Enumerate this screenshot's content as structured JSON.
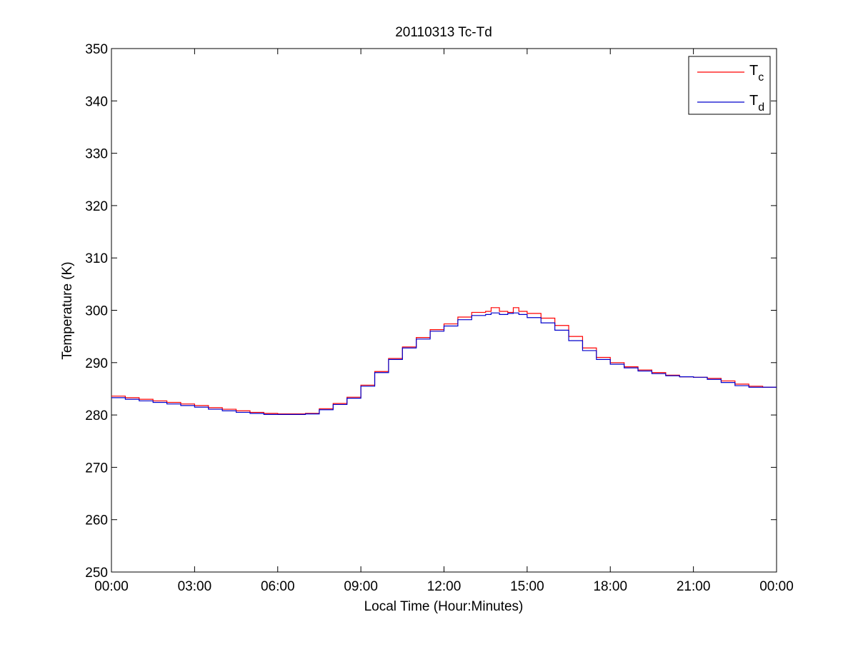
{
  "chart_data": {
    "type": "line",
    "title": "20110313 Tc-Td",
    "xlabel": "Local Time (Hour:Minutes)",
    "ylabel": "Temperature (K)",
    "xlim": [
      0,
      24
    ],
    "ylim": [
      250,
      350
    ],
    "x_ticks": [
      {
        "value": 0,
        "label": "00:00"
      },
      {
        "value": 3,
        "label": "03:00"
      },
      {
        "value": 6,
        "label": "06:00"
      },
      {
        "value": 9,
        "label": "09:00"
      },
      {
        "value": 12,
        "label": "12:00"
      },
      {
        "value": 15,
        "label": "15:00"
      },
      {
        "value": 18,
        "label": "18:00"
      },
      {
        "value": 21,
        "label": "21:00"
      },
      {
        "value": 24,
        "label": "00:00"
      }
    ],
    "y_ticks": [
      250,
      260,
      270,
      280,
      290,
      300,
      310,
      320,
      330,
      340,
      350
    ],
    "grid": false,
    "legend_position": "top-right",
    "series": [
      {
        "name": "Tc",
        "name_main": "T",
        "name_sub": "c",
        "color": "#ff0000",
        "x": [
          0,
          0.5,
          1,
          1.5,
          2,
          2.5,
          3,
          3.5,
          4,
          4.5,
          5,
          5.5,
          6,
          6.5,
          7,
          7.5,
          8,
          8.5,
          9,
          9.5,
          10,
          10.5,
          11,
          11.5,
          12,
          12.5,
          13,
          13.5,
          13.7,
          14,
          14.3,
          14.5,
          14.7,
          15,
          15.5,
          16,
          16.5,
          17,
          17.5,
          18,
          18.5,
          19,
          19.5,
          20,
          20.5,
          21,
          21.5,
          22,
          22.5,
          23,
          23.5,
          24
        ],
        "y": [
          283.6,
          283.3,
          283.0,
          282.7,
          282.4,
          282.1,
          281.8,
          281.4,
          281.1,
          280.8,
          280.5,
          280.3,
          280.2,
          280.2,
          280.3,
          281.2,
          282.2,
          283.4,
          285.7,
          288.3,
          290.8,
          293.0,
          294.8,
          296.3,
          297.4,
          298.7,
          299.6,
          299.8,
          300.5,
          299.8,
          299.6,
          300.5,
          299.8,
          299.4,
          298.5,
          297.1,
          295.0,
          292.8,
          291.0,
          290.0,
          289.2,
          288.6,
          288.1,
          287.6,
          287.3,
          287.2,
          287.0,
          286.5,
          285.9,
          285.5,
          285.3,
          285.3
        ]
      },
      {
        "name": "Td",
        "name_main": "T",
        "name_sub": "d",
        "color": "#0000cc",
        "x": [
          0,
          0.5,
          1,
          1.5,
          2,
          2.5,
          3,
          3.5,
          4,
          4.5,
          5,
          5.5,
          6,
          6.5,
          7,
          7.5,
          8,
          8.5,
          9,
          9.5,
          10,
          10.5,
          11,
          11.5,
          12,
          12.5,
          13,
          13.5,
          13.7,
          14,
          14.3,
          14.5,
          14.7,
          15,
          15.5,
          16,
          16.5,
          17,
          17.5,
          18,
          18.5,
          19,
          19.5,
          20,
          20.5,
          21,
          21.5,
          22,
          22.5,
          23,
          23.5,
          24
        ],
        "y": [
          283.3,
          283.0,
          282.7,
          282.4,
          282.1,
          281.8,
          281.5,
          281.1,
          280.8,
          280.5,
          280.3,
          280.1,
          280.1,
          280.1,
          280.2,
          281.0,
          282.0,
          283.2,
          285.5,
          288.1,
          290.6,
          292.8,
          294.5,
          296.0,
          297.0,
          298.2,
          299.0,
          299.2,
          299.5,
          299.2,
          299.4,
          299.5,
          299.2,
          298.6,
          297.6,
          296.2,
          294.2,
          292.3,
          290.6,
          289.7,
          289.0,
          288.4,
          287.9,
          287.5,
          287.3,
          287.2,
          286.8,
          286.2,
          285.6,
          285.3,
          285.3,
          285.3
        ]
      }
    ]
  }
}
